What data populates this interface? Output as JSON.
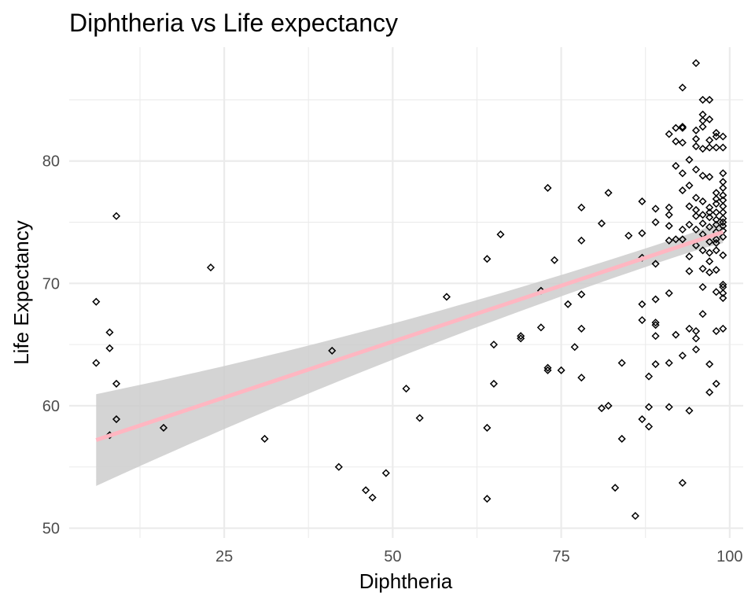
{
  "chart_data": {
    "type": "scatter",
    "title": "Diphtheria vs Life expectancy",
    "xlabel": "Diphtheria",
    "ylabel": "Life Expectancy",
    "xlim": [
      2,
      102
    ],
    "ylim": [
      49.2,
      89.3
    ],
    "x_ticks": [
      25,
      50,
      75,
      100
    ],
    "x_minor_ticks": [
      12.5,
      37.5,
      62.5,
      87.5
    ],
    "y_ticks": [
      50,
      60,
      70,
      80
    ],
    "y_minor_ticks": [
      55,
      65,
      75,
      85
    ],
    "grid": true,
    "marker": "diamond-open",
    "marker_color": "#000000",
    "trend": {
      "method": "linear",
      "color": "#ffb6c1",
      "band_color": "#cccccc",
      "x0": 6,
      "y0": 57.2,
      "x1": 99,
      "y1": 74.2,
      "band_low_start": 53.5,
      "band_high_start": 61.0,
      "band_low_end": 73.2,
      "band_high_end": 75.0
    },
    "points": [
      [
        6,
        68.5
      ],
      [
        6,
        63.5
      ],
      [
        8,
        66
      ],
      [
        8,
        64.7
      ],
      [
        8,
        57.6
      ],
      [
        9,
        75.5
      ],
      [
        9,
        61.8
      ],
      [
        9,
        58.9
      ],
      [
        16,
        58.2
      ],
      [
        23,
        71.3
      ],
      [
        31,
        57.3
      ],
      [
        41,
        64.5
      ],
      [
        42,
        55
      ],
      [
        46,
        53.1
      ],
      [
        47,
        52.5
      ],
      [
        49,
        54.5
      ],
      [
        52,
        61.4
      ],
      [
        54,
        59
      ],
      [
        58,
        68.9
      ],
      [
        64,
        72
      ],
      [
        64,
        58.2
      ],
      [
        64,
        52.4
      ],
      [
        65,
        65
      ],
      [
        65,
        61.8
      ],
      [
        66,
        74
      ],
      [
        69,
        65.7
      ],
      [
        69,
        65.5
      ],
      [
        72,
        69.4
      ],
      [
        72,
        66.4
      ],
      [
        73,
        77.8
      ],
      [
        73,
        63.1
      ],
      [
        73,
        62.9
      ],
      [
        74,
        71.9
      ],
      [
        75,
        62.9
      ],
      [
        76,
        68.3
      ],
      [
        77,
        64.8
      ],
      [
        78,
        76.2
      ],
      [
        78,
        73.5
      ],
      [
        78,
        69.1
      ],
      [
        78,
        66.3
      ],
      [
        78,
        62.3
      ],
      [
        81,
        74.9
      ],
      [
        81,
        59.8
      ],
      [
        82,
        77.4
      ],
      [
        82,
        60
      ],
      [
        83,
        53.3
      ],
      [
        84,
        63.5
      ],
      [
        84,
        57.3
      ],
      [
        85,
        73.9
      ],
      [
        86,
        51
      ],
      [
        87,
        76.7
      ],
      [
        87,
        74.1
      ],
      [
        87,
        72.1
      ],
      [
        87,
        68.3
      ],
      [
        87,
        67
      ],
      [
        87,
        58.9
      ],
      [
        88,
        62.4
      ],
      [
        88,
        59.9
      ],
      [
        88,
        58.3
      ],
      [
        89,
        76.1
      ],
      [
        89,
        75
      ],
      [
        89,
        71.6
      ],
      [
        89,
        68.7
      ],
      [
        89,
        66.8
      ],
      [
        89,
        66.6
      ],
      [
        89,
        65.7
      ],
      [
        89,
        63.4
      ],
      [
        91,
        82.2
      ],
      [
        91,
        76.2
      ],
      [
        91,
        75.6
      ],
      [
        91,
        74.7
      ],
      [
        91,
        73.5
      ],
      [
        91,
        69.2
      ],
      [
        91,
        63.5
      ],
      [
        91,
        59.9
      ],
      [
        92,
        82.7
      ],
      [
        92,
        81.6
      ],
      [
        92,
        79.6
      ],
      [
        92,
        73.6
      ],
      [
        92,
        65.8
      ],
      [
        93,
        86
      ],
      [
        93,
        82.8
      ],
      [
        93,
        82.7
      ],
      [
        93,
        81.5
      ],
      [
        93,
        79
      ],
      [
        93,
        77.6
      ],
      [
        93,
        74.4
      ],
      [
        93,
        73.6
      ],
      [
        93,
        64.1
      ],
      [
        93,
        53.7
      ],
      [
        94,
        80.1
      ],
      [
        94,
        78
      ],
      [
        94,
        76.3
      ],
      [
        94,
        74.8
      ],
      [
        94,
        72.2
      ],
      [
        94,
        71
      ],
      [
        94,
        66.3
      ],
      [
        94,
        59.6
      ],
      [
        95,
        88
      ],
      [
        95,
        82.5
      ],
      [
        95,
        81.8
      ],
      [
        95,
        81.2
      ],
      [
        95,
        79.3
      ],
      [
        95,
        77
      ],
      [
        95,
        76
      ],
      [
        95,
        75.5
      ],
      [
        95,
        74.4
      ],
      [
        95,
        73.1
      ],
      [
        95,
        66.1
      ],
      [
        95,
        65.5
      ],
      [
        95,
        64.6
      ],
      [
        96,
        85
      ],
      [
        96,
        83.8
      ],
      [
        96,
        83.3
      ],
      [
        96,
        82.8
      ],
      [
        96,
        81
      ],
      [
        96,
        78.8
      ],
      [
        96,
        76.7
      ],
      [
        96,
        75.6
      ],
      [
        96,
        74.9
      ],
      [
        96,
        74
      ],
      [
        96,
        72.7
      ],
      [
        96,
        71.2
      ],
      [
        96,
        69.7
      ],
      [
        96,
        67.5
      ],
      [
        97,
        85
      ],
      [
        97,
        83.4
      ],
      [
        97,
        81.7
      ],
      [
        97,
        81.1
      ],
      [
        97,
        78.7
      ],
      [
        97,
        76.2
      ],
      [
        97,
        75.8
      ],
      [
        97,
        75.4
      ],
      [
        97,
        74.6
      ],
      [
        97,
        73.4
      ],
      [
        97,
        72.5
      ],
      [
        97,
        71.8
      ],
      [
        97,
        70.9
      ],
      [
        97,
        63.4
      ],
      [
        97,
        61.1
      ],
      [
        98,
        82.3
      ],
      [
        98,
        82
      ],
      [
        98,
        81.1
      ],
      [
        98,
        77.4
      ],
      [
        98,
        76.9
      ],
      [
        98,
        76.5
      ],
      [
        98,
        75.8
      ],
      [
        98,
        75.2
      ],
      [
        98,
        74.8
      ],
      [
        98,
        74.2
      ],
      [
        98,
        73.6
      ],
      [
        98,
        73.3
      ],
      [
        98,
        72.7
      ],
      [
        98,
        71.1
      ],
      [
        98,
        69.3
      ],
      [
        98,
        66.1
      ],
      [
        98,
        61.8
      ],
      [
        99,
        82
      ],
      [
        99,
        81.1
      ],
      [
        99,
        79
      ],
      [
        99,
        78.3
      ],
      [
        99,
        77.8
      ],
      [
        99,
        77.2
      ],
      [
        99,
        76.8
      ],
      [
        99,
        76.3
      ],
      [
        99,
        75.8
      ],
      [
        99,
        75.3
      ],
      [
        99,
        75
      ],
      [
        99,
        74.7
      ],
      [
        99,
        74.3
      ],
      [
        99,
        73.8
      ],
      [
        99,
        72.3
      ],
      [
        99,
        69.9
      ],
      [
        99,
        69.7
      ],
      [
        99,
        69.2
      ],
      [
        99,
        68.8
      ],
      [
        99,
        66.3
      ]
    ]
  }
}
